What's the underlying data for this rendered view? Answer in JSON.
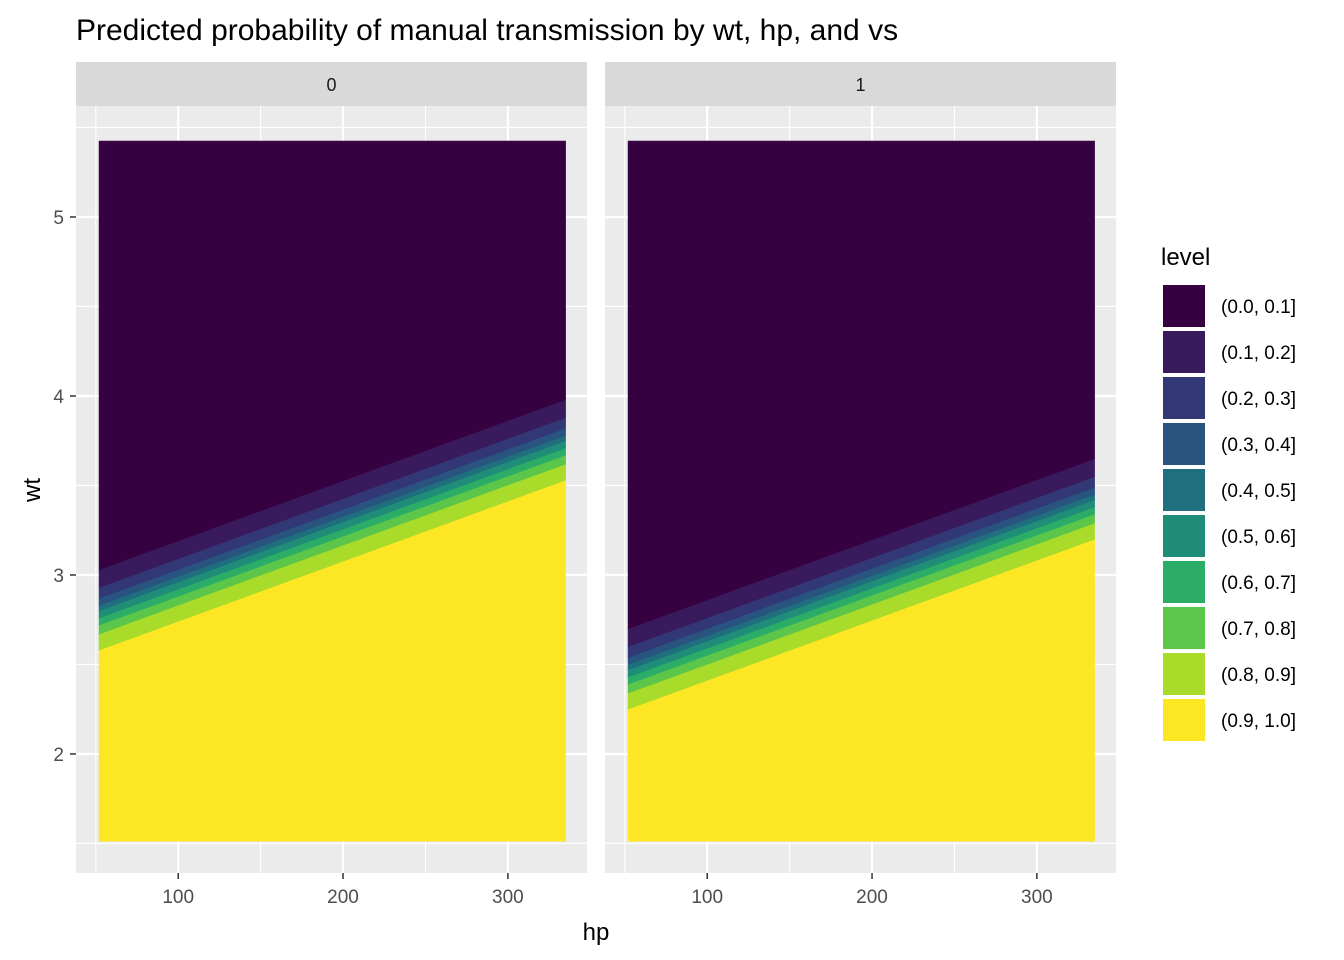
{
  "chart_data": {
    "type": "contour_filled",
    "title": "Predicted probability of manual transmission by wt, hp, and vs",
    "xlabel": "hp",
    "ylabel": "wt",
    "xlim": [
      38,
      348
    ],
    "ylim": [
      1.335,
      5.62
    ],
    "data_extent": {
      "x": [
        52,
        335
      ],
      "y": [
        1.513,
        5.424
      ]
    },
    "x_ticks": [
      100,
      200,
      300
    ],
    "y_ticks": [
      2,
      3,
      4,
      5
    ],
    "grid": true,
    "legend": {
      "title": "level",
      "position": "right",
      "entries": [
        {
          "label": "(0.0, 0.1]",
          "color": "#360140"
        },
        {
          "label": "(0.1, 0.2]",
          "color": "#391a5c"
        },
        {
          "label": "(0.2, 0.3]",
          "color": "#323775"
        },
        {
          "label": "(0.3, 0.4]",
          "color": "#29547f"
        },
        {
          "label": "(0.4, 0.5]",
          "color": "#1f6f7e"
        },
        {
          "label": "(0.5, 0.6]",
          "color": "#1f8d78"
        },
        {
          "label": "(0.6, 0.7]",
          "color": "#2cad67"
        },
        {
          "label": "(0.7, 0.8]",
          "color": "#5cc64a"
        },
        {
          "label": "(0.8, 0.9]",
          "color": "#a8db2a"
        },
        {
          "label": "(0.9, 1.0]",
          "color": "#fde725"
        }
      ]
    },
    "panels": [
      {
        "label": "0",
        "contour_levels": [
          0.9,
          0.8,
          0.7,
          0.6,
          0.5,
          0.4,
          0.3,
          0.2,
          0.1
        ],
        "contour_lines": [
          {
            "level": 0.9,
            "wt_at_xmin": 2.58,
            "wt_at_xmax": 3.53
          },
          {
            "level": 0.8,
            "wt_at_xmin": 2.67,
            "wt_at_xmax": 3.62
          },
          {
            "level": 0.7,
            "wt_at_xmin": 2.72,
            "wt_at_xmax": 3.67
          },
          {
            "level": 0.6,
            "wt_at_xmin": 2.76,
            "wt_at_xmax": 3.71
          },
          {
            "level": 0.5,
            "wt_at_xmin": 2.8,
            "wt_at_xmax": 3.75
          },
          {
            "level": 0.4,
            "wt_at_xmin": 2.83,
            "wt_at_xmax": 3.78
          },
          {
            "level": 0.3,
            "wt_at_xmin": 2.87,
            "wt_at_xmax": 3.82
          },
          {
            "level": 0.2,
            "wt_at_xmin": 2.93,
            "wt_at_xmax": 3.88
          },
          {
            "level": 0.1,
            "wt_at_xmin": 3.03,
            "wt_at_xmax": 3.98
          }
        ]
      },
      {
        "label": "1",
        "contour_levels": [
          0.9,
          0.8,
          0.7,
          0.6,
          0.5,
          0.4,
          0.3,
          0.2,
          0.1
        ],
        "contour_lines": [
          {
            "level": 0.9,
            "wt_at_xmin": 2.25,
            "wt_at_xmax": 3.2
          },
          {
            "level": 0.8,
            "wt_at_xmin": 2.34,
            "wt_at_xmax": 3.29
          },
          {
            "level": 0.7,
            "wt_at_xmin": 2.39,
            "wt_at_xmax": 3.34
          },
          {
            "level": 0.6,
            "wt_at_xmin": 2.43,
            "wt_at_xmax": 3.38
          },
          {
            "level": 0.5,
            "wt_at_xmin": 2.47,
            "wt_at_xmax": 3.42
          },
          {
            "level": 0.4,
            "wt_at_xmin": 2.5,
            "wt_at_xmax": 3.45
          },
          {
            "level": 0.3,
            "wt_at_xmin": 2.54,
            "wt_at_xmax": 3.49
          },
          {
            "level": 0.2,
            "wt_at_xmin": 2.6,
            "wt_at_xmax": 3.55
          },
          {
            "level": 0.1,
            "wt_at_xmin": 2.7,
            "wt_at_xmax": 3.65
          }
        ]
      }
    ]
  }
}
